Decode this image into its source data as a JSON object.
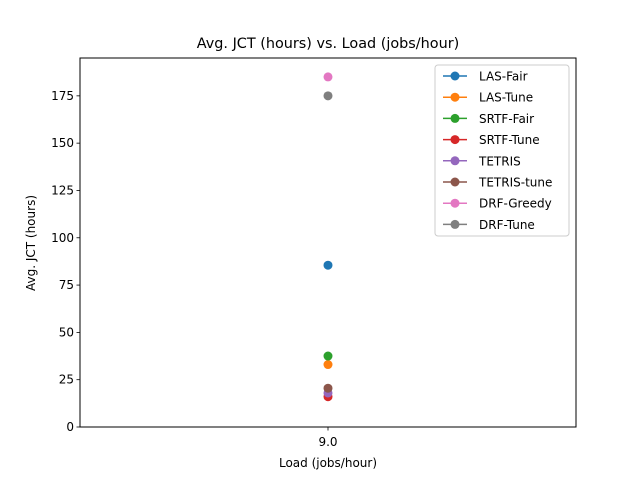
{
  "chart_data": {
    "type": "scatter",
    "title": "Avg. JCT (hours) vs. Load (jobs/hour)",
    "xlabel": "Load (jobs/hour)",
    "ylabel": "Avg. JCT (hours)",
    "x_ticks": [
      "9.0"
    ],
    "x": [
      9.0
    ],
    "xlim": [
      8.0,
      10.0
    ],
    "ylim": [
      0,
      195
    ],
    "y_ticks": [
      0,
      25,
      50,
      75,
      100,
      125,
      150,
      175
    ],
    "grid": false,
    "legend_position": "top-right",
    "series": [
      {
        "name": "LAS-Fair",
        "color": "#1f77b4",
        "values": [
          85.5
        ]
      },
      {
        "name": "LAS-Tune",
        "color": "#ff7f0e",
        "values": [
          33
        ]
      },
      {
        "name": "SRTF-Fair",
        "color": "#2ca02c",
        "values": [
          37.5
        ]
      },
      {
        "name": "SRTF-Tune",
        "color": "#d62728",
        "values": [
          16
        ]
      },
      {
        "name": "TETRIS",
        "color": "#9467bd",
        "values": [
          18
        ]
      },
      {
        "name": "TETRIS-tune",
        "color": "#8c564b",
        "values": [
          20.5
        ]
      },
      {
        "name": "DRF-Greedy",
        "color": "#e377c2",
        "values": [
          185
        ]
      },
      {
        "name": "DRF-Tune",
        "color": "#7f7f7f",
        "values": [
          175
        ]
      }
    ]
  }
}
